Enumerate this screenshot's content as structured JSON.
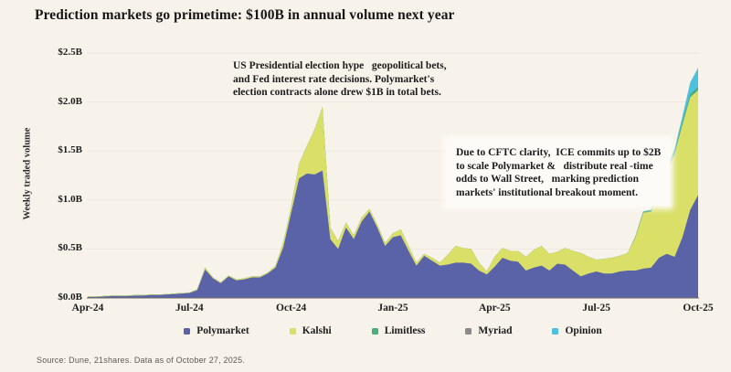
{
  "title": "Prediction markets go primetime: $100B in annual volume next year",
  "y_axis_title": "Weekly traded volume",
  "source": "Source: Dune, 21shares. Data as of October 27, 2025.",
  "annotations": {
    "election": {
      "lines": [
        "US Presidential election hype   geopolitical bets,",
        "and Fed interest rate decisions. Polymarket's",
        "election contracts alone drew $1B in total bets."
      ]
    },
    "cftc": {
      "lines": [
        "Due to CFTC clarity,  ICE commits up to $2B",
        "to scale Polymarket &   distribute real -time",
        "odds to Wall Street,   marking prediction",
        "markets' institutional breakout moment."
      ]
    }
  },
  "colors": {
    "background": "#f7f2ea",
    "gridline": "rgba(0,0,0,0.045)",
    "axis_line": "#6f6a63",
    "polymarket": "#5a62a8",
    "kalshi": "#d9df67",
    "limitless": "#4aae7c",
    "myriad": "#8a8a8a",
    "opinion": "#4cc0dd"
  },
  "chart_data": {
    "type": "area",
    "stacked": true,
    "x_unit": "week (Apr 2024 - Oct 2025)",
    "ylim": [
      0,
      2.5
    ],
    "grid": "horizontal, faint",
    "legend_position": "bottom",
    "y_ticks": [
      {
        "label": "$0.0B",
        "value": 0.0
      },
      {
        "label": "$0.5B",
        "value": 0.5
      },
      {
        "label": "$1.0B",
        "value": 1.0
      },
      {
        "label": "$1.5B",
        "value": 1.5
      },
      {
        "label": "$2.0B",
        "value": 2.0
      },
      {
        "label": "$2.5B",
        "value": 2.5
      }
    ],
    "x_ticks": [
      {
        "label": "Apr-24",
        "index": 0
      },
      {
        "label": "Jul-24",
        "index": 13
      },
      {
        "label": "Oct-24",
        "index": 26
      },
      {
        "label": "Jan-25",
        "index": 39
      },
      {
        "label": "Apr-25",
        "index": 52
      },
      {
        "label": "Jul-25",
        "index": 65
      },
      {
        "label": "Oct-25",
        "index": 78
      }
    ],
    "series": [
      {
        "name": "Polymarket",
        "color": "#5a62a8",
        "values": [
          0.01,
          0.01,
          0.015,
          0.02,
          0.02,
          0.02,
          0.025,
          0.025,
          0.03,
          0.03,
          0.035,
          0.04,
          0.045,
          0.05,
          0.08,
          0.29,
          0.2,
          0.15,
          0.22,
          0.18,
          0.19,
          0.21,
          0.21,
          0.25,
          0.31,
          0.52,
          0.87,
          1.22,
          1.27,
          1.26,
          1.3,
          0.6,
          0.5,
          0.72,
          0.6,
          0.78,
          0.88,
          0.72,
          0.53,
          0.62,
          0.64,
          0.48,
          0.33,
          0.43,
          0.38,
          0.33,
          0.34,
          0.36,
          0.36,
          0.35,
          0.28,
          0.24,
          0.32,
          0.41,
          0.38,
          0.37,
          0.28,
          0.31,
          0.33,
          0.28,
          0.35,
          0.34,
          0.28,
          0.22,
          0.25,
          0.27,
          0.25,
          0.25,
          0.27,
          0.28,
          0.28,
          0.3,
          0.31,
          0.41,
          0.45,
          0.42,
          0.62,
          0.9,
          1.05
        ]
      },
      {
        "name": "Kalshi",
        "color": "#d9df67",
        "values": [
          0.005,
          0.005,
          0.005,
          0.005,
          0.005,
          0.005,
          0.005,
          0.005,
          0.005,
          0.005,
          0.005,
          0.005,
          0.005,
          0.005,
          0.01,
          0.02,
          0.01,
          0.01,
          0.01,
          0.01,
          0.01,
          0.01,
          0.01,
          0.01,
          0.02,
          0.05,
          0.06,
          0.15,
          0.28,
          0.46,
          0.65,
          0.12,
          0.08,
          0.05,
          0.04,
          0.04,
          0.03,
          0.03,
          0.03,
          0.04,
          0.06,
          0.05,
          0.03,
          0.02,
          0.03,
          0.03,
          0.1,
          0.17,
          0.15,
          0.15,
          0.08,
          0.03,
          0.1,
          0.1,
          0.1,
          0.11,
          0.14,
          0.18,
          0.2,
          0.17,
          0.12,
          0.17,
          0.2,
          0.24,
          0.17,
          0.12,
          0.15,
          0.16,
          0.16,
          0.18,
          0.34,
          0.57,
          0.57,
          0.74,
          0.85,
          1.05,
          1.15,
          1.15,
          1.07
        ]
      },
      {
        "name": "Limitless",
        "color": "#4aae7c",
        "values": [
          0,
          0,
          0,
          0,
          0,
          0,
          0,
          0,
          0,
          0,
          0,
          0,
          0,
          0,
          0,
          0,
          0,
          0,
          0,
          0,
          0,
          0,
          0,
          0,
          0,
          0,
          0,
          0,
          0,
          0,
          0,
          0,
          0,
          0,
          0,
          0,
          0,
          0,
          0,
          0,
          0,
          0,
          0,
          0,
          0,
          0,
          0,
          0,
          0,
          0,
          0,
          0,
          0,
          0,
          0,
          0,
          0,
          0,
          0,
          0,
          0,
          0,
          0,
          0,
          0,
          0,
          0,
          0,
          0,
          0,
          0.01,
          0.015,
          0.02,
          0.02,
          0.02,
          0.02,
          0.025,
          0.03,
          0.03
        ]
      },
      {
        "name": "Myriad",
        "color": "#8a8a8a",
        "values": [
          0,
          0,
          0,
          0,
          0,
          0,
          0,
          0,
          0,
          0,
          0,
          0,
          0,
          0,
          0,
          0,
          0,
          0,
          0,
          0,
          0,
          0,
          0,
          0,
          0,
          0,
          0,
          0,
          0,
          0,
          0,
          0,
          0,
          0,
          0,
          0,
          0,
          0,
          0,
          0,
          0,
          0,
          0,
          0,
          0,
          0,
          0,
          0,
          0,
          0,
          0,
          0,
          0,
          0,
          0,
          0,
          0,
          0,
          0,
          0,
          0,
          0,
          0,
          0,
          0,
          0,
          0,
          0,
          0,
          0,
          0,
          0,
          0,
          0,
          0,
          0,
          0,
          0,
          0
        ]
      },
      {
        "name": "Opinion",
        "color": "#4cc0dd",
        "values": [
          0,
          0,
          0,
          0,
          0,
          0,
          0,
          0,
          0,
          0,
          0,
          0,
          0,
          0,
          0,
          0,
          0,
          0,
          0,
          0,
          0,
          0,
          0,
          0,
          0,
          0,
          0,
          0,
          0,
          0,
          0,
          0,
          0,
          0,
          0,
          0,
          0,
          0,
          0,
          0,
          0,
          0,
          0,
          0,
          0,
          0,
          0,
          0,
          0,
          0,
          0,
          0,
          0,
          0,
          0,
          0,
          0,
          0,
          0,
          0,
          0,
          0,
          0,
          0,
          0,
          0,
          0,
          0,
          0,
          0,
          0,
          0,
          0,
          0,
          0.01,
          0.03,
          0.06,
          0.12,
          0.2
        ]
      }
    ]
  }
}
